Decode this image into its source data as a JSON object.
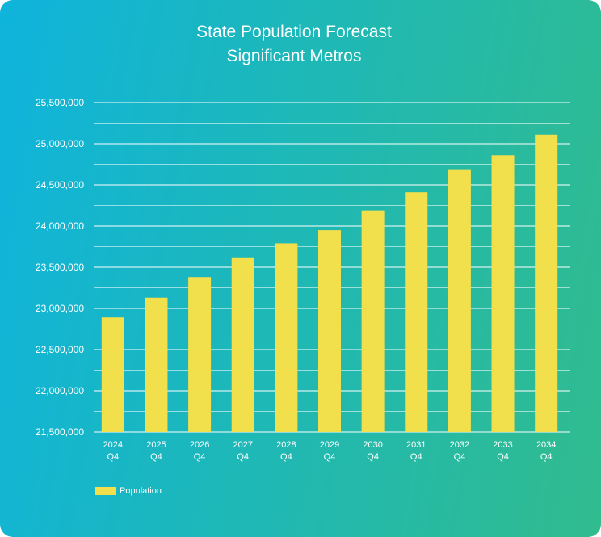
{
  "chart_data": {
    "type": "bar",
    "title": "State Population Forecast",
    "subtitle": "Significant Metros",
    "categories": [
      [
        "2024",
        "Q4"
      ],
      [
        "2025",
        "Q4"
      ],
      [
        "2026",
        "Q4"
      ],
      [
        "2027",
        "Q4"
      ],
      [
        "2028",
        "Q4"
      ],
      [
        "2029",
        "Q4"
      ],
      [
        "2030",
        "Q4"
      ],
      [
        "2031",
        "Q4"
      ],
      [
        "2032",
        "Q4"
      ],
      [
        "2033",
        "Q4"
      ],
      [
        "2034",
        "Q4"
      ]
    ],
    "series": [
      {
        "name": "Population",
        "color": "#f2df4c",
        "values": [
          22890000,
          23130000,
          23380000,
          23620000,
          23790000,
          23950000,
          24190000,
          24410000,
          24690000,
          24860000,
          25110000
        ]
      }
    ],
    "ylim": [
      21500000,
      25500000
    ],
    "y_ticks": [
      "21,500,000",
      "22,000,000",
      "22,500,000",
      "23,000,000",
      "23,500,000",
      "24,000,000",
      "24,500,000",
      "25,000,000",
      "25,500,000"
    ],
    "minor_gridlines": true,
    "legend_position": "bottom-left",
    "xlabel": "",
    "ylabel": ""
  }
}
